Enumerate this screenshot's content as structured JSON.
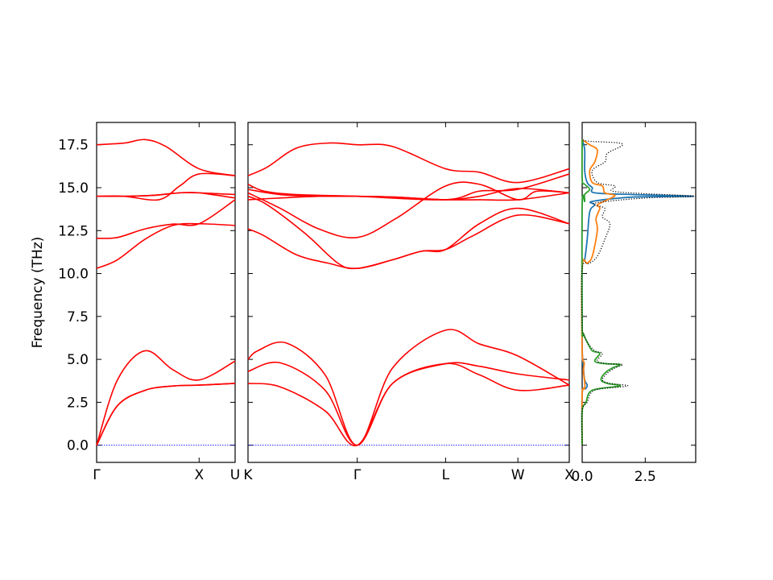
{
  "chart_data": {
    "type": "line",
    "ylabel": "Frequency (THz)",
    "ylim": [
      -1.0,
      18.8
    ],
    "yticks": [
      0.0,
      2.5,
      5.0,
      7.5,
      10.0,
      12.5,
      15.0,
      17.5
    ],
    "ytick_labels": [
      "0.0",
      "2.5",
      "5.0",
      "7.5",
      "10.0",
      "12.5",
      "15.0",
      "17.5"
    ],
    "band_color": "#ff0000",
    "zero_line_color": "#0000ff",
    "panels": [
      {
        "id": "bands-gamma-x-u",
        "kpoints": [
          {
            "label": "Γ",
            "pos": 0.0
          },
          {
            "label": "X",
            "pos": 0.74
          },
          {
            "label": "U",
            "pos": 1.0
          }
        ],
        "bands": [
          {
            "x": [
              0,
              0.15,
              0.35,
              0.55,
              0.74,
              1.0
            ],
            "y": [
              0,
              3.8,
              5.5,
              4.4,
              3.8,
              4.9
            ]
          },
          {
            "x": [
              0,
              0.15,
              0.35,
              0.55,
              0.74,
              1.0
            ],
            "y": [
              0,
              2.3,
              3.2,
              3.45,
              3.5,
              3.6
            ]
          },
          {
            "x": [
              0,
              0.15,
              0.35,
              0.55,
              0.74,
              1.0
            ],
            "y": [
              0,
              2.3,
              3.2,
              3.45,
              3.5,
              3.6
            ]
          },
          {
            "x": [
              0,
              0.15,
              0.35,
              0.55,
              0.74,
              1.0
            ],
            "y": [
              10.3,
              10.8,
              12.0,
              12.8,
              12.9,
              12.8
            ]
          },
          {
            "x": [
              0,
              0.15,
              0.35,
              0.55,
              0.74,
              1.0
            ],
            "y": [
              12.05,
              12.1,
              12.6,
              12.88,
              12.9,
              14.3
            ]
          },
          {
            "x": [
              0,
              0.2,
              0.4,
              0.6,
              0.74,
              1.0
            ],
            "y": [
              14.5,
              14.5,
              14.55,
              14.7,
              14.7,
              14.6
            ]
          },
          {
            "x": [
              0,
              0.2,
              0.4,
              0.6,
              0.74,
              1.0
            ],
            "y": [
              14.5,
              14.5,
              14.55,
              14.7,
              14.7,
              14.4
            ]
          },
          {
            "x": [
              0,
              0.2,
              0.45,
              0.6,
              0.74,
              1.0
            ],
            "y": [
              14.5,
              14.5,
              14.3,
              15.1,
              15.8,
              15.7
            ]
          },
          {
            "x": [
              0,
              0.2,
              0.35,
              0.5,
              0.74,
              1.0
            ],
            "y": [
              17.5,
              17.6,
              17.8,
              17.4,
              16.1,
              15.7
            ]
          }
        ]
      },
      {
        "id": "bands-k-gamma-l-w-x",
        "kpoints": [
          {
            "label": "K",
            "pos": 0.0
          },
          {
            "label": "Γ",
            "pos": 0.34
          },
          {
            "label": "L",
            "pos": 0.615
          },
          {
            "label": "W",
            "pos": 0.84
          },
          {
            "label": "X",
            "pos": 1.0
          }
        ],
        "bands": [
          {
            "x": [
              0,
              0.03,
              0.12,
              0.24,
              0.34,
              0.45,
              0.615,
              0.72,
              0.84,
              1.0
            ],
            "y": [
              5.0,
              5.5,
              5.95,
              4.1,
              0,
              4.5,
              6.7,
              5.9,
              5.2,
              3.5
            ]
          },
          {
            "x": [
              0,
              0.1,
              0.24,
              0.34,
              0.45,
              0.615,
              0.72,
              0.84,
              1.0
            ],
            "y": [
              4.3,
              4.8,
              3.2,
              0,
              3.6,
              4.75,
              4.6,
              4.15,
              3.8
            ]
          },
          {
            "x": [
              0,
              0.1,
              0.24,
              0.34,
              0.45,
              0.615,
              0.72,
              0.84,
              1.0
            ],
            "y": [
              3.6,
              3.4,
              2.0,
              0,
              3.6,
              4.75,
              4.1,
              3.2,
              3.5
            ]
          },
          {
            "x": [
              0,
              0.05,
              0.15,
              0.25,
              0.34,
              0.45,
              0.54,
              0.615,
              0.7,
              0.84,
              1.0
            ],
            "y": [
              12.6,
              12.2,
              11.1,
              10.6,
              10.3,
              10.8,
              11.3,
              11.4,
              12.2,
              13.4,
              12.9
            ]
          },
          {
            "x": [
              0,
              0.06,
              0.18,
              0.28,
              0.34,
              0.45,
              0.54,
              0.615,
              0.72,
              0.84,
              1.0
            ],
            "y": [
              14.5,
              14.0,
              12.3,
              10.6,
              10.3,
              10.8,
              11.3,
              11.4,
              12.9,
              13.8,
              12.9
            ]
          },
          {
            "x": [
              0,
              0.1,
              0.22,
              0.34,
              0.46,
              0.615,
              0.72,
              0.84,
              0.9,
              1.0
            ],
            "y": [
              14.7,
              13.8,
              12.6,
              12.1,
              13.2,
              15.1,
              15.2,
              14.3,
              14.8,
              14.7
            ]
          },
          {
            "x": [
              0,
              0.1,
              0.22,
              0.34,
              0.46,
              0.615,
              0.72,
              0.84,
              1.0
            ],
            "y": [
              14.3,
              14.4,
              14.5,
              14.5,
              14.45,
              14.3,
              14.5,
              14.95,
              14.7
            ]
          },
          {
            "x": [
              0,
              0.1,
              0.22,
              0.34,
              0.46,
              0.615,
              0.72,
              0.84,
              1.0
            ],
            "y": [
              14.9,
              14.6,
              14.5,
              14.5,
              14.45,
              14.3,
              14.3,
              14.3,
              14.7
            ]
          },
          {
            "x": [
              0,
              0.06,
              0.15,
              0.25,
              0.34,
              0.45,
              0.615,
              0.72,
              0.84,
              1.0
            ],
            "y": [
              15.7,
              16.2,
              17.3,
              17.6,
              17.5,
              17.4,
              16.1,
              15.9,
              15.3,
              16.1
            ]
          },
          {
            "x": [
              0,
              0.05,
              0.15,
              0.34,
              0.615,
              0.72,
              0.84,
              1.0
            ],
            "y": [
              15.2,
              14.8,
              14.6,
              14.5,
              14.3,
              14.8,
              14.9,
              15.8
            ]
          }
        ]
      }
    ],
    "dos": {
      "xlim": [
        0,
        4.5
      ],
      "xticks": [
        0.0,
        2.5
      ],
      "xtick_labels": [
        "0.0",
        "2.5"
      ],
      "series": [
        {
          "color": "#1f77b4",
          "style": "solid",
          "points": [
            [
              0,
              0
            ],
            [
              0,
              3.0
            ],
            [
              0.15,
              3.3
            ],
            [
              0.2,
              3.5
            ],
            [
              0.1,
              3.8
            ],
            [
              0.05,
              4.5
            ],
            [
              0.02,
              5.0
            ],
            [
              0,
              6.0
            ],
            [
              0,
              10.4
            ],
            [
              0.1,
              10.8
            ],
            [
              0.2,
              12.0
            ],
            [
              0.3,
              13.6
            ],
            [
              0.5,
              14.0
            ],
            [
              0.4,
              14.2
            ],
            [
              2.0,
              14.45
            ],
            [
              4.4,
              14.5
            ],
            [
              2.0,
              14.6
            ],
            [
              0.5,
              14.7
            ],
            [
              0.4,
              15.0
            ],
            [
              0.2,
              15.3
            ],
            [
              0.1,
              16.0
            ],
            [
              0.1,
              17.2
            ],
            [
              0,
              17.8
            ]
          ]
        },
        {
          "color": "#ff7f0e",
          "style": "solid",
          "points": [
            [
              0,
              0
            ],
            [
              0,
              3.0
            ],
            [
              0.1,
              3.3
            ],
            [
              0.1,
              3.7
            ],
            [
              0.05,
              4.3
            ],
            [
              0.08,
              4.8
            ],
            [
              0,
              5.5
            ],
            [
              0,
              10.4
            ],
            [
              0.2,
              10.6
            ],
            [
              0.4,
              11.0
            ],
            [
              0.6,
              12.5
            ],
            [
              0.55,
              13.2
            ],
            [
              0.7,
              13.8
            ],
            [
              0.6,
              14.0
            ],
            [
              1.0,
              14.3
            ],
            [
              1.3,
              14.55
            ],
            [
              0.9,
              14.7
            ],
            [
              0.8,
              15.1
            ],
            [
              0.4,
              15.3
            ],
            [
              0.3,
              16.0
            ],
            [
              0.5,
              16.5
            ],
            [
              0.6,
              17.2
            ],
            [
              0.3,
              17.5
            ],
            [
              0,
              17.8
            ]
          ]
        },
        {
          "color": "#2ca02c",
          "style": "solid",
          "points": [
            [
              0,
              0
            ],
            [
              0,
              2.0
            ],
            [
              0.15,
              2.5
            ],
            [
              0.4,
              3.2
            ],
            [
              1.5,
              3.45
            ],
            [
              1.0,
              3.6
            ],
            [
              0.75,
              3.8
            ],
            [
              0.9,
              4.2
            ],
            [
              1.2,
              4.5
            ],
            [
              1.5,
              4.7
            ],
            [
              0.9,
              4.75
            ],
            [
              0.5,
              4.9
            ],
            [
              0.7,
              5.35
            ],
            [
              0.4,
              5.5
            ],
            [
              0.2,
              6.0
            ],
            [
              0.05,
              6.5
            ],
            [
              0,
              7.0
            ],
            [
              0,
              14.0
            ],
            [
              0.1,
              14.2
            ],
            [
              0.1,
              14.6
            ],
            [
              0.3,
              14.9
            ],
            [
              0.1,
              15.2
            ],
            [
              0,
              15.5
            ],
            [
              0,
              17.8
            ]
          ]
        },
        {
          "color": "#000000",
          "style": "dotted",
          "points": [
            [
              0,
              0
            ],
            [
              0,
              2.0
            ],
            [
              0.2,
              2.5
            ],
            [
              0.5,
              3.2
            ],
            [
              1.8,
              3.45
            ],
            [
              1.1,
              3.6
            ],
            [
              0.8,
              3.8
            ],
            [
              1.0,
              4.2
            ],
            [
              1.3,
              4.5
            ],
            [
              1.6,
              4.7
            ],
            [
              1.0,
              4.75
            ],
            [
              0.6,
              4.9
            ],
            [
              0.8,
              5.35
            ],
            [
              0.5,
              5.5
            ],
            [
              0.2,
              6.0
            ],
            [
              0.05,
              6.5
            ],
            [
              0,
              7.0
            ],
            [
              0,
              10.3
            ],
            [
              0.3,
              10.6
            ],
            [
              0.6,
              11.0
            ],
            [
              0.9,
              12.0
            ],
            [
              1.1,
              12.9
            ],
            [
              0.8,
              13.3
            ],
            [
              0.9,
              13.8
            ],
            [
              0.5,
              14.1
            ],
            [
              2.5,
              14.4
            ],
            [
              4.5,
              14.5
            ],
            [
              2.5,
              14.65
            ],
            [
              1.2,
              14.8
            ],
            [
              1.3,
              15.1
            ],
            [
              0.6,
              15.3
            ],
            [
              0.4,
              16.0
            ],
            [
              0.9,
              16.5
            ],
            [
              1.0,
              17.0
            ],
            [
              1.6,
              17.55
            ],
            [
              0.3,
              17.7
            ],
            [
              0,
              17.8
            ]
          ]
        }
      ]
    }
  }
}
